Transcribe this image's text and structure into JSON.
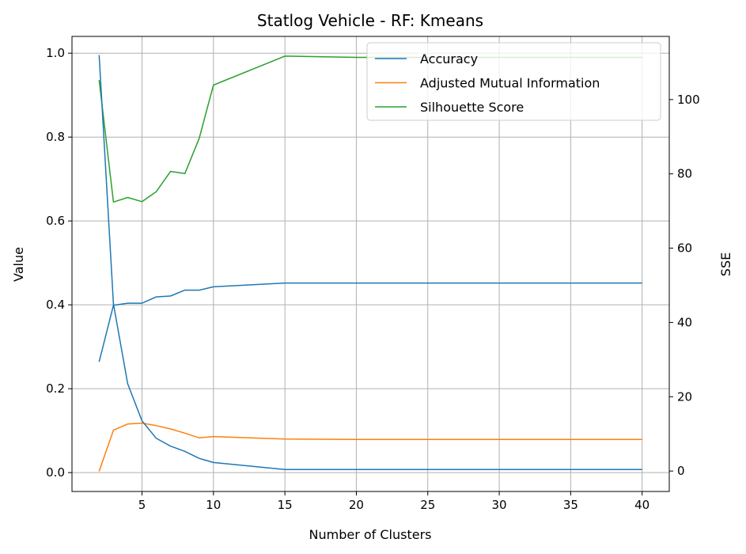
{
  "chart_data": {
    "type": "line",
    "title": "Statlog Vehicle - RF: Kmeans",
    "xlabel": "Number of Clusters",
    "ylabel": "Value",
    "y2label": "SSE",
    "xlim": [
      0.1,
      41.9
    ],
    "ylim": [
      -0.045,
      1.04
    ],
    "y2lim": [
      -5.5,
      117
    ],
    "xticks": [
      5,
      10,
      15,
      20,
      25,
      30,
      35,
      40
    ],
    "yticks": [
      0.0,
      0.2,
      0.4,
      0.6,
      0.8,
      1.0
    ],
    "y2ticks": [
      0,
      20,
      40,
      60,
      80,
      100
    ],
    "grid": true,
    "legend_position": "upper right",
    "x": [
      2,
      3,
      4,
      5,
      6,
      7,
      8,
      9,
      10,
      15,
      20,
      25,
      30,
      35,
      40
    ],
    "series": [
      {
        "name": "Accuracy",
        "axis": "left",
        "color": "#1f77b4",
        "values": [
          0.264,
          0.399,
          0.404,
          0.404,
          0.419,
          0.421,
          0.435,
          0.435,
          0.443,
          0.452,
          0.452,
          0.452,
          0.452,
          0.452,
          0.452
        ]
      },
      {
        "name": "Adjusted Mutual Information",
        "axis": "left",
        "color": "#ff7f0e",
        "values": [
          0.003,
          0.101,
          0.116,
          0.118,
          0.112,
          0.104,
          0.094,
          0.083,
          0.086,
          0.08,
          0.079,
          0.079,
          0.079,
          0.079,
          0.079
        ]
      },
      {
        "name": "Silhouette Score",
        "axis": "left",
        "color": "#2ca02c",
        "values": [
          0.936,
          0.645,
          0.656,
          0.646,
          0.67,
          0.718,
          0.713,
          0.797,
          0.924,
          0.993,
          0.99,
          0.99,
          0.99,
          0.99,
          0.99
        ]
      },
      {
        "name": "SSE",
        "axis": "right",
        "color": "#1f77b4",
        "values": [
          112,
          45,
          23.5,
          13.5,
          8.8,
          6.7,
          5.3,
          3.4,
          2.3,
          0.4,
          0.4,
          0.4,
          0.4,
          0.4,
          0.4
        ]
      }
    ]
  }
}
